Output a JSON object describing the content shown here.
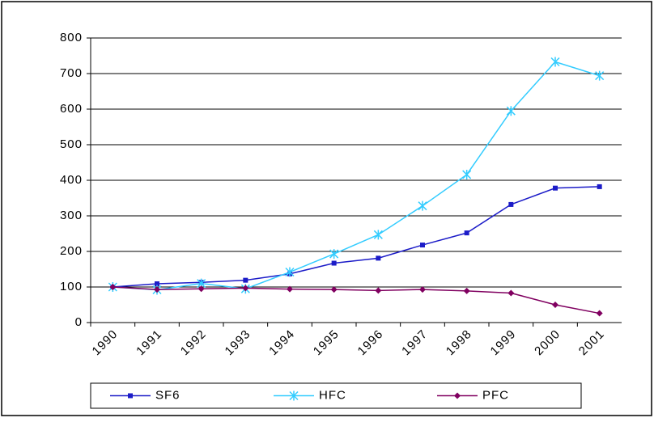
{
  "chart_data": {
    "type": "line",
    "categories": [
      "1990",
      "1991",
      "1992",
      "1993",
      "1994",
      "1995",
      "1996",
      "1997",
      "1998",
      "1999",
      "2000",
      "2001"
    ],
    "series": [
      {
        "name": "SF6",
        "color": "#1c1cc8",
        "marker": "square",
        "values": [
          100,
          109,
          113,
          119,
          137,
          167,
          181,
          218,
          252,
          332,
          378,
          382
        ]
      },
      {
        "name": "HFC",
        "color": "#33ccff",
        "marker": "star",
        "values": [
          100,
          92,
          110,
          95,
          142,
          193,
          247,
          328,
          416,
          595,
          733,
          694
        ]
      },
      {
        "name": "PFC",
        "color": "#800060",
        "marker": "diamond",
        "values": [
          100,
          93,
          95,
          97,
          94,
          93,
          90,
          93,
          89,
          83,
          50,
          26
        ]
      }
    ],
    "ylim": [
      0,
      800
    ],
    "yticks": [
      0,
      100,
      200,
      300,
      400,
      500,
      600,
      700,
      800
    ],
    "grid": true,
    "legend": "bottom"
  }
}
